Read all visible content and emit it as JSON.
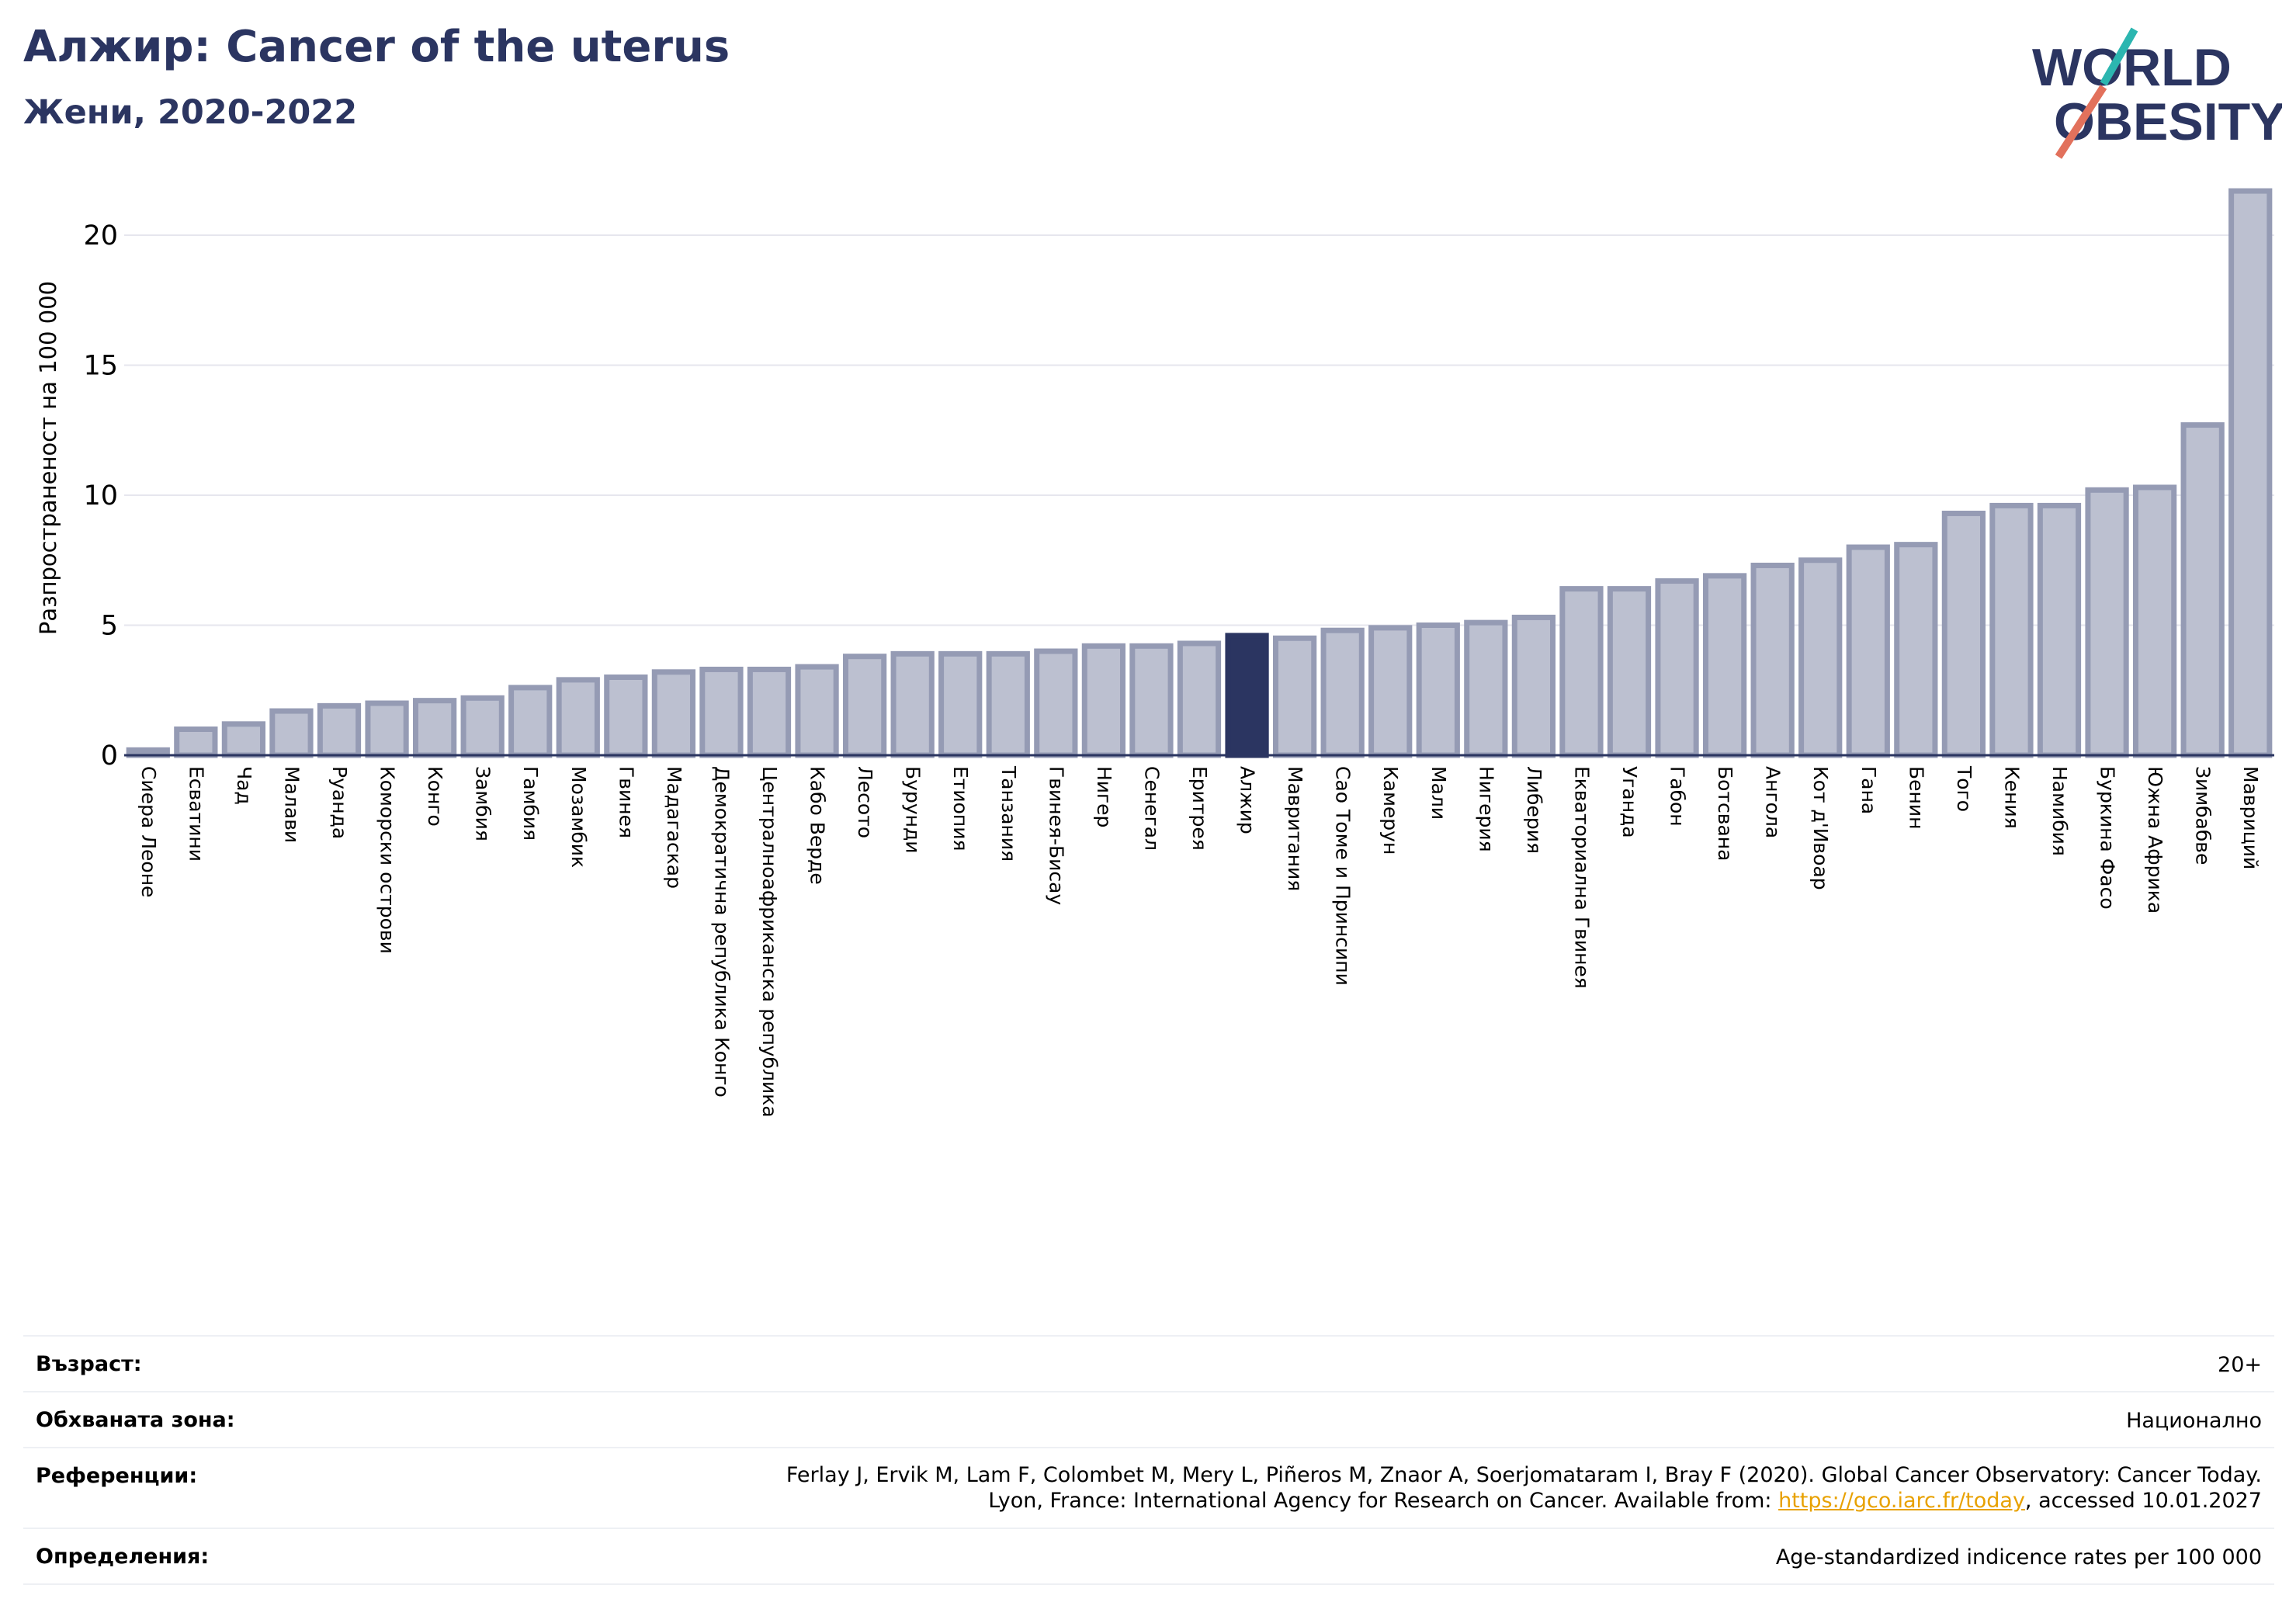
{
  "header": {
    "title": "Алжир: Cancer of the uterus",
    "subtitle": "Жени, 2020-2022"
  },
  "logo": {
    "line1": "WORLD",
    "line2": "OBESITY",
    "text_color": "#2b3561",
    "slash_colors": [
      "#2cb6b0",
      "#e2715c"
    ]
  },
  "colors": {
    "bar_fill": "#bcc0d0",
    "bar_stroke": "#959bb4",
    "highlight": "#2b3561",
    "title": "#2b3561"
  },
  "chart_data": {
    "type": "bar",
    "title": "Алжир: Cancer of the uterus",
    "subtitle": "Жени, 2020-2022",
    "xlabel": "",
    "ylabel": "Разпространеност на 100 000",
    "ylim": [
      0,
      22
    ],
    "yticks": [
      0,
      5,
      10,
      15,
      20
    ],
    "grid": true,
    "highlight_category": "Алжир",
    "categories": [
      "Сиера Леоне",
      "Есватини",
      "Чад",
      "Малави",
      "Руанда",
      "Коморски острови",
      "Конго",
      "Замбия",
      "Гамбия",
      "Мозамбик",
      "Гвинея",
      "Мадагаскар",
      "Демократична република Конго",
      "Централноафриканска република",
      "Кабо Верде",
      "Лесото",
      "Бурунди",
      "Етиопия",
      "Танзания",
      "Гвинея-Бисау",
      "Нигер",
      "Сенегал",
      "Еритрея",
      "Алжир",
      "Мавритания",
      "Сао Томе и Принсипи",
      "Камерун",
      "Мали",
      "Нигерия",
      "Либерия",
      "Екваториална Гвинея",
      "Уганда",
      "Габон",
      "Ботсвана",
      "Ангола",
      "Кот д'Ивоар",
      "Гана",
      "Бенин",
      "Того",
      "Кения",
      "Намибия",
      "Буркина Фасо",
      "Южна Африка",
      "Зимбабве",
      "Мавриций"
    ],
    "values": [
      0.2,
      1.0,
      1.2,
      1.7,
      1.9,
      2.0,
      2.1,
      2.2,
      2.6,
      2.9,
      3.0,
      3.2,
      3.3,
      3.3,
      3.4,
      3.8,
      3.9,
      3.9,
      3.9,
      4.0,
      4.2,
      4.2,
      4.3,
      4.6,
      4.5,
      4.8,
      4.9,
      5.0,
      5.1,
      5.3,
      6.4,
      6.4,
      6.7,
      6.9,
      7.3,
      7.5,
      8.0,
      8.1,
      9.3,
      9.6,
      9.6,
      10.2,
      10.3,
      12.7,
      21.7
    ]
  },
  "info": {
    "rows": [
      {
        "label": "Възраст:",
        "value": "20+"
      },
      {
        "label": "Обхваната зона:",
        "value": "Национално"
      },
      {
        "label": "Референции:",
        "value_line1": "Ferlay J, Ervik M, Lam F, Colombet M, Mery L, Piñeros M, Znaor A, Soerjomataram I, Bray F (2020). Global Cancer Observatory: Cancer Today.",
        "value_line2_pre": "Lyon, France: International Agency for Research on Cancer. Available from: ",
        "link": "https://gco.iarc.fr/today",
        "value_line2_post": ", accessed 10.01.2027"
      },
      {
        "label": "Определения:",
        "value": "Age-standardized indicence rates per 100 000"
      }
    ]
  }
}
